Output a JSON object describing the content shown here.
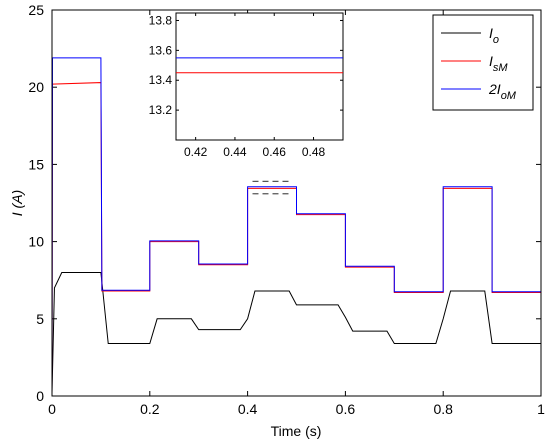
{
  "chart_data": {
    "type": "line",
    "xlabel": "Time (s)",
    "ylabel": "I (A)",
    "xlim": [
      0,
      1
    ],
    "ylim": [
      0,
      25
    ],
    "xticks": [
      "0",
      "0.2",
      "0.4",
      "0.6",
      "0.8",
      "1"
    ],
    "yticks": [
      "0",
      "5",
      "10",
      "15",
      "20",
      "25"
    ],
    "grid": false,
    "legend_position": "top-right",
    "legend": [
      {
        "parts": [
          "I",
          "o"
        ],
        "color": "#000000"
      },
      {
        "parts": [
          "I",
          "sM"
        ],
        "color": "#ff0000"
      },
      {
        "parts": [
          "2I",
          "oM"
        ],
        "color": "#0000ff"
      }
    ],
    "series": [
      {
        "name": "I_o",
        "color": "#000000",
        "x": [
          0,
          0.005,
          0.02,
          0.1,
          0.115,
          0.2,
          0.215,
          0.285,
          0.3,
          0.385,
          0.4,
          0.415,
          0.485,
          0.5,
          0.585,
          0.6,
          0.615,
          0.685,
          0.7,
          0.785,
          0.8,
          0.815,
          0.885,
          0.9,
          1.0
        ],
        "y": [
          0.2,
          7.0,
          8.0,
          8.0,
          3.4,
          3.4,
          5.0,
          5.0,
          4.3,
          4.3,
          5.0,
          6.8,
          6.8,
          5.9,
          5.9,
          5.1,
          4.2,
          4.2,
          3.4,
          3.4,
          5.0,
          6.8,
          6.8,
          3.4,
          3.4
        ]
      },
      {
        "name": "I_sM",
        "color": "#ff0000",
        "x": [
          0,
          0.001,
          0.1,
          0.102,
          0.2,
          0.2,
          0.3,
          0.3,
          0.4,
          0.4,
          0.5,
          0.5,
          0.6,
          0.6,
          0.7,
          0.7,
          0.8,
          0.8,
          0.9,
          0.9,
          1.0
        ],
        "y": [
          0,
          20.2,
          20.3,
          6.8,
          6.8,
          10.0,
          10.0,
          8.5,
          8.5,
          13.45,
          13.45,
          11.75,
          11.75,
          8.35,
          8.35,
          6.7,
          6.7,
          13.45,
          13.45,
          6.7,
          6.7
        ]
      },
      {
        "name": "2I_oM",
        "color": "#0000ff",
        "x": [
          0,
          0.001,
          0.1,
          0.102,
          0.2,
          0.2,
          0.3,
          0.3,
          0.4,
          0.4,
          0.5,
          0.5,
          0.6,
          0.6,
          0.7,
          0.7,
          0.8,
          0.8,
          0.9,
          0.9,
          1.0
        ],
        "y": [
          0,
          21.9,
          21.9,
          6.85,
          6.85,
          10.05,
          10.05,
          8.55,
          8.55,
          13.55,
          13.55,
          11.8,
          11.8,
          8.4,
          8.4,
          6.75,
          6.75,
          13.55,
          13.55,
          6.75,
          6.75
        ]
      }
    ],
    "highlight_box": {
      "x": [
        0.41,
        0.49
      ],
      "y": [
        13.1,
        13.9
      ],
      "style": "dashed"
    },
    "inset": {
      "xlim": [
        0.41,
        0.495
      ],
      "ylim": [
        13.0,
        13.85
      ],
      "xticks": [
        0.42,
        0.44,
        0.46,
        0.48
      ],
      "yticks": [
        13.2,
        13.4,
        13.6,
        13.8
      ],
      "xtick_labels": [
        "0.42",
        "0.44",
        "0.46",
        "0.48"
      ],
      "ytick_labels": [
        "13.2",
        "13.4",
        "13.6",
        "13.8"
      ],
      "series": [
        {
          "name": "I_sM",
          "color": "#ff0000",
          "x": [
            0.41,
            0.495
          ],
          "y": [
            13.45,
            13.45
          ]
        },
        {
          "name": "2I_oM",
          "color": "#0000ff",
          "x": [
            0.41,
            0.495
          ],
          "y": [
            13.55,
            13.55
          ]
        }
      ]
    }
  }
}
